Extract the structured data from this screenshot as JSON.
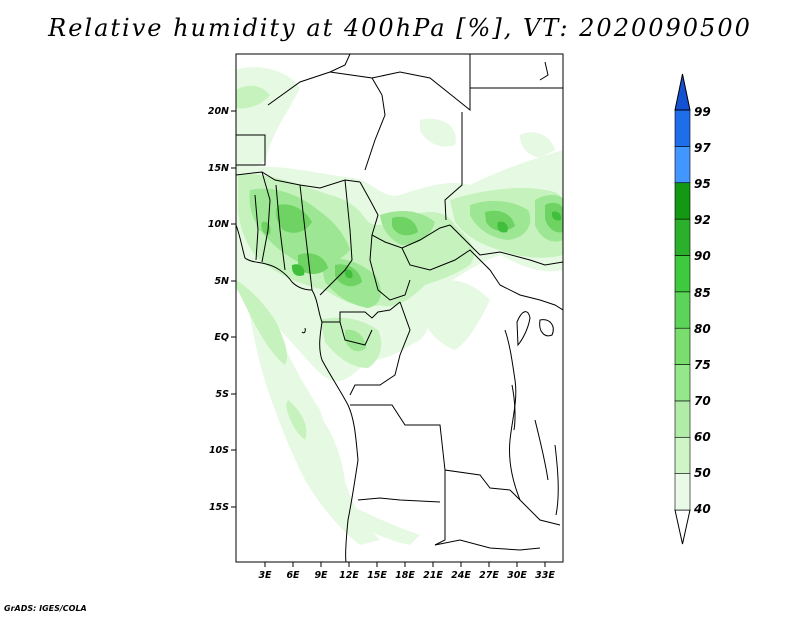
{
  "title": "Relative humidity at 400hPa [%], VT: 2020090500",
  "credit": "GrADS: IGES/COLA",
  "map": {
    "lon_range": [
      0,
      35
    ],
    "lat_range": [
      -20,
      25
    ],
    "lat_ticks": [
      "20N",
      "15N",
      "10N",
      "5N",
      "EQ",
      "5S",
      "10S",
      "15S"
    ],
    "lon_ticks": [
      "3E",
      "6E",
      "9E",
      "12E",
      "15E",
      "18E",
      "21E",
      "24E",
      "27E",
      "30E",
      "33E"
    ]
  },
  "colorbar": {
    "levels": [
      "40",
      "50",
      "60",
      "70",
      "75",
      "80",
      "85",
      "90",
      "92",
      "95",
      "97",
      "99"
    ],
    "colors": [
      "#ffffff",
      "#e9fbe6",
      "#cdf5c6",
      "#b1eda8",
      "#94e78a",
      "#79de6d",
      "#5cd45a",
      "#3ec93e",
      "#2bb02b",
      "#139813",
      "#4196ff",
      "#1e6eeb",
      "#1450d2"
    ]
  }
}
